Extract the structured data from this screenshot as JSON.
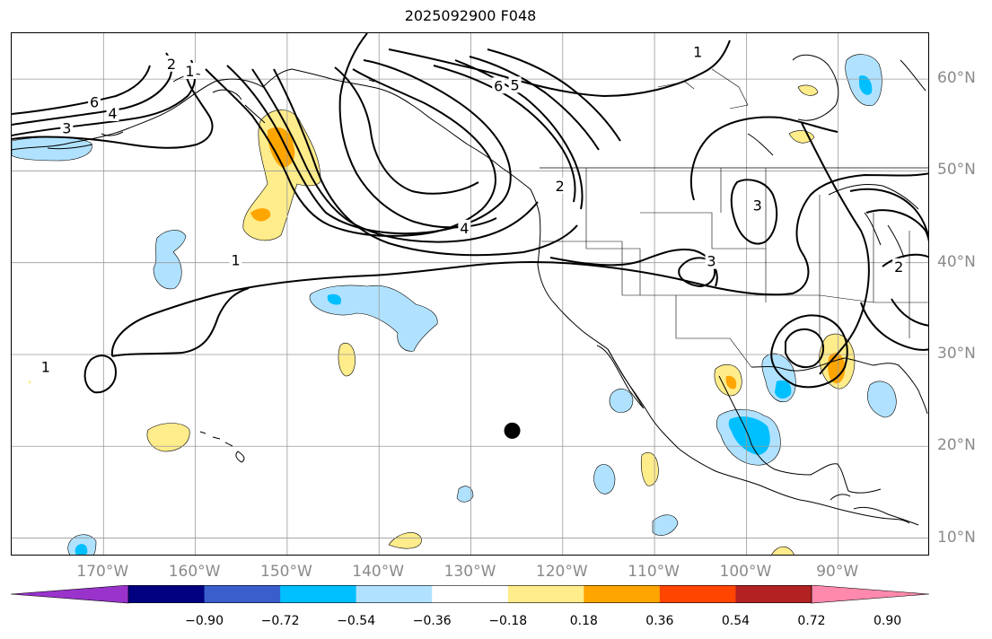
{
  "title": "2025092900 F048",
  "map": {
    "lon_range": [
      -180,
      -80
    ],
    "lat_range": [
      8,
      65
    ],
    "lon_ticks": [
      {
        "value": -170,
        "label": "170°W"
      },
      {
        "value": -160,
        "label": "160°W"
      },
      {
        "value": -150,
        "label": "150°W"
      },
      {
        "value": -140,
        "label": "140°W"
      },
      {
        "value": -130,
        "label": "130°W"
      },
      {
        "value": -120,
        "label": "120°W"
      },
      {
        "value": -110,
        "label": "110°W"
      },
      {
        "value": -100,
        "label": "100°W"
      },
      {
        "value": -90,
        "label": "90°W"
      }
    ],
    "lat_ticks": [
      {
        "value": 60,
        "label": "60°N"
      },
      {
        "value": 50,
        "label": "50°N"
      },
      {
        "value": 40,
        "label": "40°N"
      },
      {
        "value": 30,
        "label": "30°N"
      },
      {
        "value": 20,
        "label": "20°N"
      },
      {
        "value": 10,
        "label": "10°N"
      }
    ],
    "grid_lines": true,
    "marker": {
      "lon": -125.5,
      "lat": 21.7,
      "color": "#000000"
    },
    "contour_labels": [
      {
        "text": "6",
        "lon": -171,
        "lat": 57.4
      },
      {
        "text": "4",
        "lon": -169,
        "lat": 56.2
      },
      {
        "text": "3",
        "lon": -174,
        "lat": 54.6
      },
      {
        "text": "2",
        "lon": -162.6,
        "lat": 61.6
      },
      {
        "text": "1",
        "lon": -160.6,
        "lat": 60.8
      },
      {
        "text": "1",
        "lon": -155.6,
        "lat": 40.2
      },
      {
        "text": "4",
        "lon": -130.7,
        "lat": 43.7
      },
      {
        "text": "6",
        "lon": -127,
        "lat": 59.2
      },
      {
        "text": "5",
        "lon": -125.2,
        "lat": 59.3
      },
      {
        "text": "1",
        "lon": -105.3,
        "lat": 62.9
      },
      {
        "text": "2",
        "lon": -120.3,
        "lat": 48.3
      },
      {
        "text": "3",
        "lon": -98.8,
        "lat": 46.2
      },
      {
        "text": "3",
        "lon": -103.8,
        "lat": 40.1
      },
      {
        "text": "2",
        "lon": -83.4,
        "lat": 39.5
      },
      {
        "text": "1",
        "lon": -176.3,
        "lat": 28.6
      }
    ]
  },
  "colorbar": {
    "colors": [
      "#9933cc",
      "#000080",
      "#3a5fcd",
      "#00bfff",
      "#b0e2ff",
      "#ffffff",
      "#ffec8b",
      "#ffa500",
      "#ff4500",
      "#b22222",
      "#ff89ac"
    ],
    "tick_labels": [
      "−0.90",
      "−0.72",
      "−0.54",
      "−0.36",
      "−0.18",
      "0.18",
      "0.36",
      "0.54",
      "0.72",
      "0.90"
    ]
  }
}
